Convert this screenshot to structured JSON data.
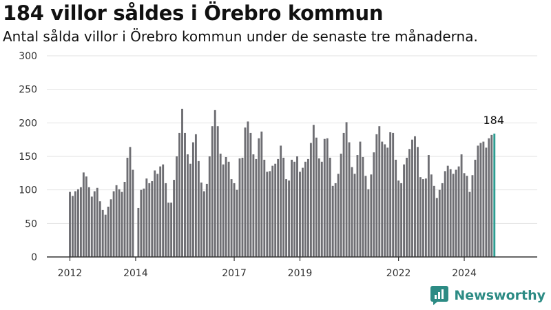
{
  "title": "184 villor såldes i Örebro kommun",
  "subtitle": "Antal sålda villor i Örebro kommun under de senaste tre månaderna.",
  "brand": {
    "name": "Newsworthy"
  },
  "colors": {
    "bar": "#6e6e73",
    "highlight": "#2c9c91",
    "axis": "#333333",
    "grid": "#e2e2e2",
    "brand": "#2c8b84"
  },
  "chart_data": {
    "type": "bar",
    "title": "",
    "xlabel": "",
    "ylabel": "",
    "ylim": [
      0,
      300
    ],
    "yticks": [
      0,
      50,
      100,
      150,
      200,
      250,
      300
    ],
    "xticks": [
      {
        "label": "2012",
        "index": 0
      },
      {
        "label": "2014",
        "index": 24
      },
      {
        "label": "2017",
        "index": 60
      },
      {
        "label": "2019",
        "index": 84
      },
      {
        "label": "2022",
        "index": 120
      },
      {
        "label": "2024",
        "index": 144
      }
    ],
    "grid": true,
    "highlight_label": "184",
    "values": [
      97,
      91,
      98,
      101,
      104,
      126,
      120,
      104,
      90,
      98,
      103,
      83,
      70,
      63,
      75,
      86,
      98,
      107,
      101,
      97,
      112,
      148,
      164,
      130,
      0,
      73,
      100,
      102,
      117,
      110,
      113,
      129,
      124,
      135,
      138,
      110,
      81,
      81,
      115,
      150,
      185,
      221,
      185,
      153,
      139,
      171,
      183,
      143,
      111,
      98,
      109,
      150,
      195,
      219,
      195,
      154,
      138,
      149,
      142,
      116,
      110,
      100,
      147,
      148,
      193,
      202,
      185,
      153,
      146,
      177,
      187,
      145,
      127,
      128,
      136,
      139,
      146,
      166,
      148,
      116,
      114,
      145,
      142,
      150,
      127,
      133,
      142,
      146,
      170,
      197,
      178,
      147,
      142,
      176,
      177,
      148,
      106,
      110,
      124,
      154,
      185,
      201,
      171,
      134,
      124,
      152,
      172,
      149,
      121,
      101,
      123,
      156,
      183,
      195,
      172,
      168,
      163,
      186,
      185,
      145,
      114,
      110,
      138,
      148,
      161,
      175,
      180,
      164,
      119,
      116,
      117,
      152,
      123,
      106,
      88,
      100,
      110,
      128,
      136,
      131,
      124,
      130,
      135,
      153,
      125,
      121,
      97,
      122,
      145,
      166,
      170,
      172,
      163,
      177,
      182,
      184
    ]
  }
}
